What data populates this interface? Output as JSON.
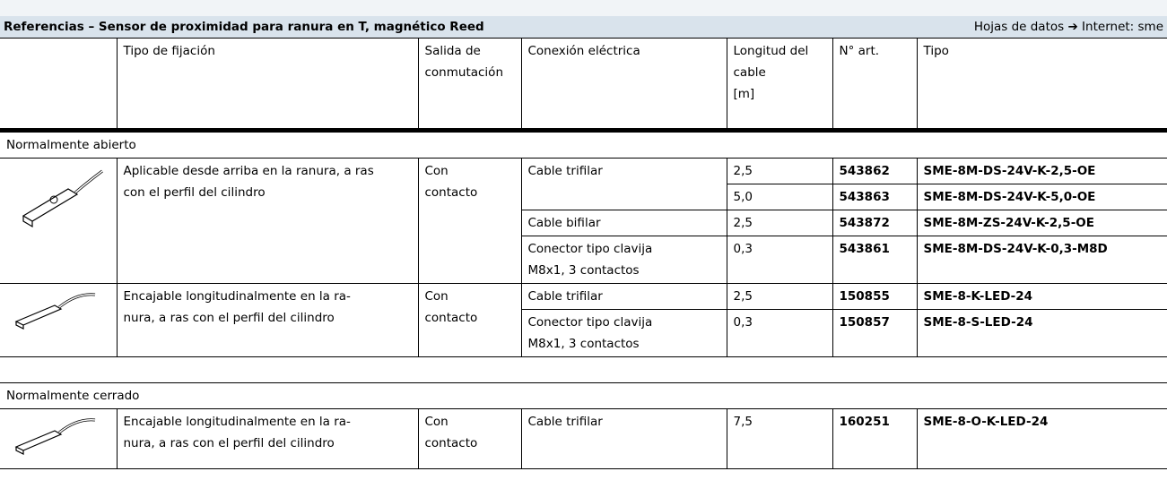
{
  "header": {
    "title": "Referencias – Sensor de proximidad para ranura en T, magnético Reed",
    "link": "Hojas de datos ➔ Internet: sme"
  },
  "table": {
    "columns": [
      "Tipo de fijación",
      "Salida de\nconmutación",
      "Conexión eléctrica",
      "Longitud del\ncable\n[m]",
      "N° art.",
      "Tipo"
    ],
    "sections": [
      {
        "title": "Normalmente abierto",
        "groups": [
          {
            "mounting": "Aplicable desde arriba en la ranura, a ras\ncon el perfil del cilindro",
            "output": "Con\ncontacto",
            "connections": [
              {
                "name": "Cable trifilar",
                "variants": [
                  {
                    "length": "2,5",
                    "part_no": "543862",
                    "type": "SME-8M-DS-24V-K-2,5-OE"
                  },
                  {
                    "length": "5,0",
                    "part_no": "543863",
                    "type": "SME-8M-DS-24V-K-5,0-OE"
                  }
                ]
              },
              {
                "name": "Cable bifilar",
                "variants": [
                  {
                    "length": "2,5",
                    "part_no": "543872",
                    "type": "SME-8M-ZS-24V-K-2,5-OE"
                  }
                ]
              },
              {
                "name": "Conector tipo clavija\nM8x1, 3 contactos",
                "variants": [
                  {
                    "length": "0,3",
                    "part_no": "543861",
                    "type": "SME-8M-DS-24V-K-0,3-M8D"
                  }
                ]
              }
            ]
          },
          {
            "mounting": "Encajable longitudinalmente en la ra-\nnura, a ras con el perfil del cilindro",
            "output": "Con\ncontacto",
            "connections": [
              {
                "name": "Cable trifilar",
                "variants": [
                  {
                    "length": "2,5",
                    "part_no": "150855",
                    "type": "SME-8-K-LED-24"
                  }
                ]
              },
              {
                "name": "Conector tipo clavija\nM8x1, 3 contactos",
                "variants": [
                  {
                    "length": "0,3",
                    "part_no": "150857",
                    "type": "SME-8-S-LED-24"
                  }
                ]
              }
            ]
          }
        ]
      },
      {
        "title": "Normalmente cerrado",
        "groups": [
          {
            "mounting": "Encajable longitudinalmente en la ra-\nnura, a ras con el perfil del cilindro",
            "output": "Con\ncontacto",
            "connections": [
              {
                "name": "Cable trifilar",
                "variants": [
                  {
                    "length": "7,5",
                    "part_no": "160251",
                    "type": "SME-8-O-K-LED-24"
                  }
                ]
              }
            ]
          }
        ]
      }
    ]
  }
}
